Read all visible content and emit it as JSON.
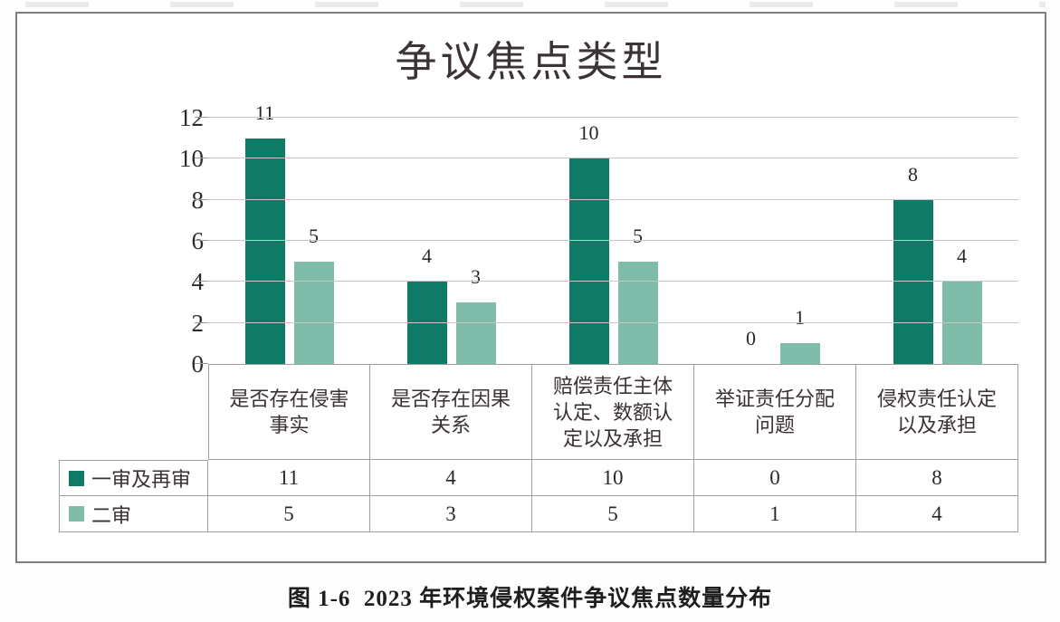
{
  "caption": "图 1-6  2023 年环境侵权案件争议焦点数量分布",
  "chart_data": {
    "type": "bar",
    "title": "争议焦点类型",
    "categories": [
      "是否存在侵害事实",
      "是否存在因果关系",
      "赔偿责任主体认定、数额认定以及承担",
      "举证责任分配问题",
      "侵权责任认定以及承担"
    ],
    "category_label_lines": [
      [
        "是否存在侵害",
        "事实"
      ],
      [
        "是否存在因果",
        "关系"
      ],
      [
        "赔偿责任主体",
        "认定、数额认",
        "定以及承担"
      ],
      [
        "举证责任分配",
        "问题"
      ],
      [
        "侵权责任认定",
        "以及承担"
      ]
    ],
    "series": [
      {
        "name": "一审及再审",
        "color": "#0f7b66",
        "values": [
          11,
          4,
          10,
          0,
          8
        ]
      },
      {
        "name": "二审",
        "color": "#7fbca9",
        "values": [
          5,
          3,
          5,
          1,
          4
        ]
      }
    ],
    "yticks": [
      0,
      2,
      4,
      6,
      8,
      10,
      12
    ],
    "ylim": [
      0,
      12
    ],
    "xlabel": "",
    "ylabel": "",
    "grid": true,
    "data_labels": true,
    "legend_position": "data-table-left",
    "colors": {
      "gridline": "#c7c7c7",
      "axis": "#9b9b9b",
      "table_border": "#9f9f9f",
      "text": "#3a3133",
      "frame_border": "#7e7e7e"
    }
  }
}
